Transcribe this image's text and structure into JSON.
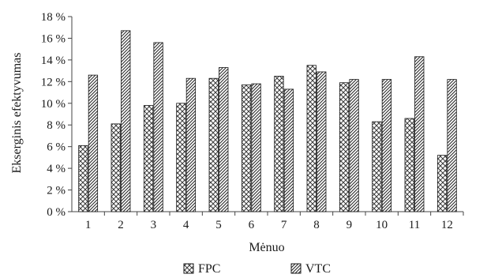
{
  "chart_data": {
    "type": "bar",
    "xlabel": "Mėnuo",
    "ylabel": "Ekserginės efektyvumas",
    "ylabel_display": "Ekserginis efektyvumas",
    "categories": [
      "1",
      "2",
      "3",
      "4",
      "5",
      "6",
      "7",
      "8",
      "9",
      "10",
      "11",
      "12"
    ],
    "ylim": [
      0,
      18
    ],
    "yticks": [
      "0 %",
      "2 %",
      "4 %",
      "6 %",
      "8 %",
      "10 %",
      "12 %",
      "14 %",
      "16 %",
      "18 %"
    ],
    "ytick_values": [
      0,
      2,
      4,
      6,
      8,
      10,
      12,
      14,
      16,
      18
    ],
    "grid": false,
    "legend_position": "bottom",
    "series": [
      {
        "name": "FPC",
        "pattern": "crosshatch",
        "values": [
          6.1,
          8.1,
          9.8,
          10.0,
          12.3,
          11.7,
          12.5,
          13.5,
          11.9,
          8.3,
          8.6,
          5.2
        ]
      },
      {
        "name": "VTC",
        "pattern": "diagonal",
        "values": [
          12.6,
          16.7,
          15.6,
          12.3,
          13.3,
          11.8,
          11.3,
          12.9,
          12.2,
          12.2,
          14.3,
          12.2
        ]
      }
    ]
  }
}
